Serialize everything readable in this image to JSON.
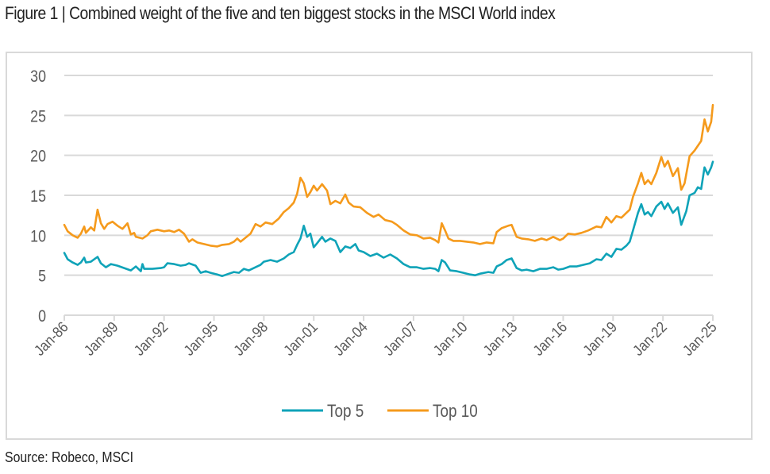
{
  "title": "Figure 1 | Combined weight of the five and ten biggest stocks in the MSCI World index",
  "source": "Source: Robeco, MSCI",
  "chart_data": {
    "type": "line",
    "title": "Combined weight of the five and ten biggest stocks in the MSCI World index",
    "xlabel": "",
    "ylabel": "",
    "ylim": [
      0,
      30
    ],
    "yticks": [
      0,
      5,
      10,
      15,
      20,
      25,
      30
    ],
    "xlim": [
      1986.0,
      2025.0
    ],
    "xticks": [
      {
        "x": 1986,
        "label": "Jan-86"
      },
      {
        "x": 1989,
        "label": "Jan-89"
      },
      {
        "x": 1992,
        "label": "Jan-92"
      },
      {
        "x": 1995,
        "label": "Jan-95"
      },
      {
        "x": 1998,
        "label": "Jan-98"
      },
      {
        "x": 2001,
        "label": "Jan-01"
      },
      {
        "x": 2004,
        "label": "Jan-04"
      },
      {
        "x": 2007,
        "label": "Jan-07"
      },
      {
        "x": 2010,
        "label": "Jan-10"
      },
      {
        "x": 2013,
        "label": "Jan-13"
      },
      {
        "x": 2016,
        "label": "Jan-16"
      },
      {
        "x": 2019,
        "label": "Jan-19"
      },
      {
        "x": 2022,
        "label": "Jan-22"
      },
      {
        "x": 2025,
        "label": "Jan-25"
      }
    ],
    "grid": "horizontal",
    "legend": "bottom-center",
    "series": [
      {
        "name": "Top 5",
        "color": "#0fa3b8",
        "points": [
          [
            1986.0,
            7.8
          ],
          [
            1986.2,
            7.0
          ],
          [
            1986.5,
            6.6
          ],
          [
            1986.8,
            6.3
          ],
          [
            1987.0,
            6.6
          ],
          [
            1987.2,
            7.2
          ],
          [
            1987.3,
            6.6
          ],
          [
            1987.6,
            6.7
          ],
          [
            1988.0,
            7.3
          ],
          [
            1988.2,
            6.5
          ],
          [
            1988.5,
            6.0
          ],
          [
            1988.8,
            6.4
          ],
          [
            1989.2,
            6.2
          ],
          [
            1989.6,
            5.9
          ],
          [
            1990.0,
            5.6
          ],
          [
            1990.3,
            6.1
          ],
          [
            1990.6,
            5.5
          ],
          [
            1990.7,
            6.4
          ],
          [
            1990.8,
            5.8
          ],
          [
            1991.3,
            5.8
          ],
          [
            1991.8,
            5.9
          ],
          [
            1992.0,
            6.0
          ],
          [
            1992.2,
            6.5
          ],
          [
            1992.6,
            6.4
          ],
          [
            1993.0,
            6.2
          ],
          [
            1993.3,
            6.3
          ],
          [
            1993.5,
            6.5
          ],
          [
            1993.9,
            6.2
          ],
          [
            1994.2,
            5.3
          ],
          [
            1994.5,
            5.5
          ],
          [
            1994.8,
            5.3
          ],
          [
            1995.2,
            5.1
          ],
          [
            1995.5,
            4.9
          ],
          [
            1995.9,
            5.2
          ],
          [
            1996.2,
            5.4
          ],
          [
            1996.5,
            5.3
          ],
          [
            1996.8,
            5.8
          ],
          [
            1997.1,
            5.6
          ],
          [
            1997.5,
            6.0
          ],
          [
            1997.8,
            6.3
          ],
          [
            1998.0,
            6.7
          ],
          [
            1998.4,
            6.9
          ],
          [
            1998.8,
            6.7
          ],
          [
            1999.2,
            7.1
          ],
          [
            1999.5,
            7.6
          ],
          [
            1999.8,
            7.9
          ],
          [
            2000.0,
            8.8
          ],
          [
            2000.2,
            9.6
          ],
          [
            2000.4,
            11.2
          ],
          [
            2000.6,
            9.8
          ],
          [
            2000.8,
            10.2
          ],
          [
            2001.0,
            8.5
          ],
          [
            2001.2,
            9.0
          ],
          [
            2001.5,
            9.8
          ],
          [
            2001.7,
            9.2
          ],
          [
            2002.0,
            9.6
          ],
          [
            2002.3,
            9.3
          ],
          [
            2002.6,
            7.9
          ],
          [
            2002.9,
            8.6
          ],
          [
            2003.2,
            8.4
          ],
          [
            2003.5,
            8.9
          ],
          [
            2003.7,
            8.1
          ],
          [
            2004.0,
            7.9
          ],
          [
            2004.4,
            7.4
          ],
          [
            2004.8,
            7.7
          ],
          [
            2005.2,
            7.2
          ],
          [
            2005.6,
            7.6
          ],
          [
            2006.0,
            7.1
          ],
          [
            2006.4,
            6.4
          ],
          [
            2006.8,
            6.0
          ],
          [
            2007.2,
            6.0
          ],
          [
            2007.6,
            5.8
          ],
          [
            2008.0,
            5.9
          ],
          [
            2008.3,
            5.8
          ],
          [
            2008.5,
            5.5
          ],
          [
            2008.7,
            6.9
          ],
          [
            2008.9,
            6.6
          ],
          [
            2009.2,
            5.6
          ],
          [
            2009.6,
            5.5
          ],
          [
            2010.0,
            5.3
          ],
          [
            2010.4,
            5.1
          ],
          [
            2010.7,
            5.0
          ],
          [
            2011.0,
            5.2
          ],
          [
            2011.5,
            5.4
          ],
          [
            2011.8,
            5.3
          ],
          [
            2012.0,
            6.1
          ],
          [
            2012.3,
            6.4
          ],
          [
            2012.6,
            6.9
          ],
          [
            2012.9,
            7.1
          ],
          [
            2013.2,
            5.9
          ],
          [
            2013.5,
            5.6
          ],
          [
            2013.8,
            5.7
          ],
          [
            2014.2,
            5.5
          ],
          [
            2014.6,
            5.8
          ],
          [
            2015.0,
            5.8
          ],
          [
            2015.4,
            6.0
          ],
          [
            2015.7,
            5.7
          ],
          [
            2016.0,
            5.8
          ],
          [
            2016.4,
            6.1
          ],
          [
            2016.8,
            6.1
          ],
          [
            2017.2,
            6.3
          ],
          [
            2017.6,
            6.5
          ],
          [
            2018.0,
            7.0
          ],
          [
            2018.3,
            6.9
          ],
          [
            2018.6,
            7.7
          ],
          [
            2018.9,
            7.3
          ],
          [
            2019.2,
            8.3
          ],
          [
            2019.5,
            8.2
          ],
          [
            2019.8,
            8.7
          ],
          [
            2020.0,
            9.2
          ],
          [
            2020.2,
            10.6
          ],
          [
            2020.5,
            12.8
          ],
          [
            2020.7,
            13.9
          ],
          [
            2020.9,
            12.6
          ],
          [
            2021.1,
            12.9
          ],
          [
            2021.3,
            12.4
          ],
          [
            2021.6,
            13.6
          ],
          [
            2021.9,
            14.2
          ],
          [
            2022.1,
            13.3
          ],
          [
            2022.3,
            14.0
          ],
          [
            2022.6,
            12.8
          ],
          [
            2022.9,
            13.5
          ],
          [
            2023.1,
            11.3
          ],
          [
            2023.4,
            13.0
          ],
          [
            2023.6,
            15.0
          ],
          [
            2023.9,
            15.3
          ],
          [
            2024.1,
            16.0
          ],
          [
            2024.3,
            15.8
          ],
          [
            2024.5,
            18.5
          ],
          [
            2024.7,
            17.6
          ],
          [
            2024.9,
            18.5
          ],
          [
            2025.0,
            19.2
          ]
        ]
      },
      {
        "name": "Top 10",
        "color": "#f59a1c",
        "points": [
          [
            1986.0,
            11.3
          ],
          [
            1986.2,
            10.5
          ],
          [
            1986.5,
            10.0
          ],
          [
            1986.8,
            9.7
          ],
          [
            1987.0,
            10.2
          ],
          [
            1987.2,
            11.1
          ],
          [
            1987.3,
            10.3
          ],
          [
            1987.6,
            11.0
          ],
          [
            1987.8,
            10.6
          ],
          [
            1988.0,
            13.2
          ],
          [
            1988.2,
            11.5
          ],
          [
            1988.4,
            10.8
          ],
          [
            1988.6,
            11.4
          ],
          [
            1988.9,
            11.7
          ],
          [
            1989.2,
            11.2
          ],
          [
            1989.5,
            10.8
          ],
          [
            1989.8,
            11.5
          ],
          [
            1990.0,
            10.1
          ],
          [
            1990.2,
            10.3
          ],
          [
            1990.3,
            9.8
          ],
          [
            1990.7,
            9.6
          ],
          [
            1991.0,
            10.0
          ],
          [
            1991.2,
            10.5
          ],
          [
            1991.6,
            10.7
          ],
          [
            1992.0,
            10.5
          ],
          [
            1992.3,
            10.6
          ],
          [
            1992.6,
            10.4
          ],
          [
            1992.9,
            10.7
          ],
          [
            1993.2,
            10.2
          ],
          [
            1993.5,
            9.2
          ],
          [
            1993.7,
            9.5
          ],
          [
            1994.0,
            9.1
          ],
          [
            1994.4,
            8.9
          ],
          [
            1994.8,
            8.7
          ],
          [
            1995.2,
            8.6
          ],
          [
            1995.5,
            8.8
          ],
          [
            1995.9,
            8.9
          ],
          [
            1996.2,
            9.2
          ],
          [
            1996.4,
            9.6
          ],
          [
            1996.6,
            9.2
          ],
          [
            1996.9,
            9.7
          ],
          [
            1997.2,
            10.2
          ],
          [
            1997.5,
            11.4
          ],
          [
            1997.8,
            11.1
          ],
          [
            1998.1,
            11.6
          ],
          [
            1998.5,
            11.4
          ],
          [
            1998.9,
            12.1
          ],
          [
            1999.2,
            12.9
          ],
          [
            1999.5,
            13.4
          ],
          [
            1999.8,
            14.1
          ],
          [
            2000.0,
            15.2
          ],
          [
            2000.2,
            17.2
          ],
          [
            2000.4,
            16.5
          ],
          [
            2000.6,
            14.8
          ],
          [
            2000.8,
            15.4
          ],
          [
            2001.0,
            16.2
          ],
          [
            2001.2,
            15.6
          ],
          [
            2001.5,
            16.4
          ],
          [
            2001.8,
            15.6
          ],
          [
            2002.0,
            13.9
          ],
          [
            2002.3,
            14.3
          ],
          [
            2002.6,
            14.0
          ],
          [
            2002.9,
            15.1
          ],
          [
            2003.1,
            14.1
          ],
          [
            2003.4,
            13.6
          ],
          [
            2003.8,
            13.5
          ],
          [
            2004.2,
            12.8
          ],
          [
            2004.6,
            12.3
          ],
          [
            2004.9,
            12.6
          ],
          [
            2005.3,
            11.9
          ],
          [
            2005.7,
            11.7
          ],
          [
            2006.0,
            11.3
          ],
          [
            2006.4,
            10.6
          ],
          [
            2006.8,
            10.1
          ],
          [
            2007.2,
            10.0
          ],
          [
            2007.6,
            9.6
          ],
          [
            2008.0,
            9.7
          ],
          [
            2008.3,
            9.4
          ],
          [
            2008.5,
            9.1
          ],
          [
            2008.7,
            11.5
          ],
          [
            2008.9,
            10.6
          ],
          [
            2009.1,
            9.6
          ],
          [
            2009.4,
            9.3
          ],
          [
            2009.8,
            9.3
          ],
          [
            2010.2,
            9.2
          ],
          [
            2010.6,
            9.1
          ],
          [
            2011.0,
            8.9
          ],
          [
            2011.4,
            9.1
          ],
          [
            2011.8,
            9.0
          ],
          [
            2012.0,
            10.4
          ],
          [
            2012.3,
            10.9
          ],
          [
            2012.7,
            11.2
          ],
          [
            2012.9,
            11.3
          ],
          [
            2013.2,
            9.8
          ],
          [
            2013.5,
            9.6
          ],
          [
            2013.9,
            9.5
          ],
          [
            2014.3,
            9.3
          ],
          [
            2014.7,
            9.6
          ],
          [
            2015.0,
            9.4
          ],
          [
            2015.4,
            9.8
          ],
          [
            2015.8,
            9.4
          ],
          [
            2016.0,
            9.6
          ],
          [
            2016.3,
            10.2
          ],
          [
            2016.7,
            10.1
          ],
          [
            2017.1,
            10.3
          ],
          [
            2017.5,
            10.6
          ],
          [
            2018.0,
            11.1
          ],
          [
            2018.3,
            11.0
          ],
          [
            2018.6,
            12.3
          ],
          [
            2018.9,
            11.6
          ],
          [
            2019.2,
            12.4
          ],
          [
            2019.5,
            12.2
          ],
          [
            2019.8,
            12.8
          ],
          [
            2020.0,
            13.2
          ],
          [
            2020.2,
            14.8
          ],
          [
            2020.5,
            16.5
          ],
          [
            2020.7,
            17.8
          ],
          [
            2020.9,
            16.4
          ],
          [
            2021.1,
            16.9
          ],
          [
            2021.3,
            16.4
          ],
          [
            2021.6,
            17.8
          ],
          [
            2021.9,
            19.8
          ],
          [
            2022.1,
            18.6
          ],
          [
            2022.3,
            19.3
          ],
          [
            2022.6,
            17.4
          ],
          [
            2022.9,
            18.4
          ],
          [
            2023.1,
            15.7
          ],
          [
            2023.3,
            16.5
          ],
          [
            2023.6,
            19.9
          ],
          [
            2023.9,
            20.6
          ],
          [
            2024.1,
            21.2
          ],
          [
            2024.3,
            21.8
          ],
          [
            2024.5,
            24.5
          ],
          [
            2024.7,
            23.0
          ],
          [
            2024.9,
            24.2
          ],
          [
            2025.0,
            26.3
          ]
        ]
      }
    ]
  }
}
